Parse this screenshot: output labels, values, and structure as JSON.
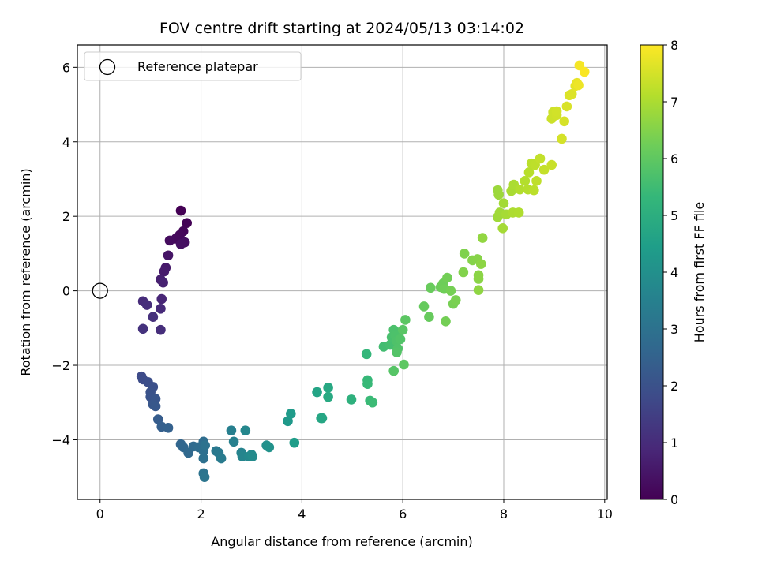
{
  "chart_data": {
    "type": "scatter",
    "title": "FOV centre drift starting at 2024/05/13 03:14:02",
    "xlabel": "Angular distance from reference (arcmin)",
    "ylabel": "Rotation from reference (arcmin)",
    "xlim": [
      -0.45,
      10.05
    ],
    "ylim": [
      -5.6,
      6.6
    ],
    "xticks": [
      0,
      2,
      4,
      6,
      8,
      10
    ],
    "yticks": [
      -4,
      -2,
      0,
      2,
      4,
      6
    ],
    "xtick_labels": [
      "0",
      "2",
      "4",
      "6",
      "8",
      "10"
    ],
    "ytick_labels": [
      "−4",
      "−2",
      "0",
      "2",
      "4",
      "6"
    ],
    "grid": true,
    "legend": {
      "placement": "top-left",
      "entries": [
        "Reference platepar"
      ]
    },
    "reference_point": {
      "x": 0,
      "y": 0
    },
    "colorbar": {
      "label": "Hours from first FF file",
      "range": [
        0,
        8
      ],
      "ticks": [
        0,
        1,
        2,
        3,
        4,
        5,
        6,
        7,
        8
      ],
      "tick_labels": [
        "0",
        "1",
        "2",
        "3",
        "4",
        "5",
        "6",
        "7",
        "8"
      ],
      "colormap": "viridis"
    },
    "points": [
      {
        "x": 1.6,
        "y": 2.15,
        "h": 0.0
      },
      {
        "x": 1.72,
        "y": 1.82,
        "h": 0.05
      },
      {
        "x": 1.65,
        "y": 1.6,
        "h": 0.1
      },
      {
        "x": 1.58,
        "y": 1.5,
        "h": 0.15
      },
      {
        "x": 1.5,
        "y": 1.4,
        "h": 0.2
      },
      {
        "x": 1.38,
        "y": 1.35,
        "h": 0.25
      },
      {
        "x": 1.68,
        "y": 1.3,
        "h": 0.3
      },
      {
        "x": 1.6,
        "y": 1.25,
        "h": 0.35
      },
      {
        "x": 1.35,
        "y": 0.95,
        "h": 0.45
      },
      {
        "x": 1.3,
        "y": 0.62,
        "h": 0.55
      },
      {
        "x": 1.27,
        "y": 0.52,
        "h": 0.6
      },
      {
        "x": 1.2,
        "y": 0.3,
        "h": 0.7
      },
      {
        "x": 1.25,
        "y": 0.22,
        "h": 0.75
      },
      {
        "x": 1.22,
        "y": -0.22,
        "h": 0.85
      },
      {
        "x": 1.2,
        "y": -0.48,
        "h": 0.95
      },
      {
        "x": 1.2,
        "y": -1.05,
        "h": 1.05
      },
      {
        "x": 0.85,
        "y": -0.28,
        "h": 1.0
      },
      {
        "x": 0.93,
        "y": -0.38,
        "h": 1.05
      },
      {
        "x": 1.05,
        "y": -0.7,
        "h": 1.1
      },
      {
        "x": 0.85,
        "y": -1.02,
        "h": 1.15
      },
      {
        "x": 0.82,
        "y": -2.3,
        "h": 1.8
      },
      {
        "x": 0.85,
        "y": -2.38,
        "h": 1.85
      },
      {
        "x": 0.95,
        "y": -2.45,
        "h": 1.9
      },
      {
        "x": 1.05,
        "y": -2.58,
        "h": 1.95
      },
      {
        "x": 1.0,
        "y": -2.72,
        "h": 2.0
      },
      {
        "x": 1.0,
        "y": -2.85,
        "h": 2.05
      },
      {
        "x": 1.1,
        "y": -2.9,
        "h": 2.1
      },
      {
        "x": 1.05,
        "y": -3.05,
        "h": 2.15
      },
      {
        "x": 1.1,
        "y": -3.1,
        "h": 2.2
      },
      {
        "x": 1.15,
        "y": -3.45,
        "h": 2.3
      },
      {
        "x": 1.22,
        "y": -3.65,
        "h": 2.4
      },
      {
        "x": 1.35,
        "y": -3.68,
        "h": 2.45
      },
      {
        "x": 1.6,
        "y": -4.12,
        "h": 2.6
      },
      {
        "x": 1.65,
        "y": -4.2,
        "h": 2.65
      },
      {
        "x": 1.75,
        "y": -4.35,
        "h": 2.7
      },
      {
        "x": 1.85,
        "y": -4.18,
        "h": 2.75
      },
      {
        "x": 1.95,
        "y": -4.2,
        "h": 2.8
      },
      {
        "x": 2.05,
        "y": -4.05,
        "h": 2.85
      },
      {
        "x": 2.05,
        "y": -4.3,
        "h": 2.9
      },
      {
        "x": 2.05,
        "y": -4.5,
        "h": 2.95
      },
      {
        "x": 2.08,
        "y": -4.15,
        "h": 3.0
      },
      {
        "x": 2.05,
        "y": -4.9,
        "h": 3.05
      },
      {
        "x": 2.07,
        "y": -5.0,
        "h": 3.1
      },
      {
        "x": 2.3,
        "y": -4.3,
        "h": 3.2
      },
      {
        "x": 2.35,
        "y": -4.35,
        "h": 3.25
      },
      {
        "x": 2.4,
        "y": -4.5,
        "h": 3.3
      },
      {
        "x": 2.6,
        "y": -3.75,
        "h": 3.45
      },
      {
        "x": 2.65,
        "y": -4.05,
        "h": 3.5
      },
      {
        "x": 2.8,
        "y": -4.35,
        "h": 3.6
      },
      {
        "x": 2.82,
        "y": -4.45,
        "h": 3.65
      },
      {
        "x": 2.88,
        "y": -3.75,
        "h": 3.7
      },
      {
        "x": 2.95,
        "y": -4.45,
        "h": 3.75
      },
      {
        "x": 3.0,
        "y": -4.4,
        "h": 3.8
      },
      {
        "x": 3.02,
        "y": -4.45,
        "h": 3.85
      },
      {
        "x": 3.3,
        "y": -4.15,
        "h": 4.0
      },
      {
        "x": 3.35,
        "y": -4.2,
        "h": 4.05
      },
      {
        "x": 3.72,
        "y": -3.5,
        "h": 4.3
      },
      {
        "x": 3.78,
        "y": -3.3,
        "h": 4.35
      },
      {
        "x": 3.85,
        "y": -4.08,
        "h": 4.4
      },
      {
        "x": 4.3,
        "y": -2.72,
        "h": 4.65
      },
      {
        "x": 4.4,
        "y": -3.42,
        "h": 4.7
      },
      {
        "x": 4.38,
        "y": -3.42,
        "h": 4.72
      },
      {
        "x": 4.52,
        "y": -2.6,
        "h": 4.8
      },
      {
        "x": 4.52,
        "y": -2.85,
        "h": 4.85
      },
      {
        "x": 4.98,
        "y": -2.92,
        "h": 5.1
      },
      {
        "x": 5.28,
        "y": -1.7,
        "h": 5.3
      },
      {
        "x": 5.3,
        "y": -2.4,
        "h": 5.35
      },
      {
        "x": 5.3,
        "y": -2.5,
        "h": 5.38
      },
      {
        "x": 5.35,
        "y": -2.95,
        "h": 5.4
      },
      {
        "x": 5.4,
        "y": -3.0,
        "h": 5.45
      },
      {
        "x": 5.62,
        "y": -1.5,
        "h": 5.55
      },
      {
        "x": 5.75,
        "y": -1.45,
        "h": 5.6
      },
      {
        "x": 5.78,
        "y": -1.25,
        "h": 5.65
      },
      {
        "x": 5.82,
        "y": -1.05,
        "h": 5.7
      },
      {
        "x": 5.85,
        "y": -1.2,
        "h": 5.72
      },
      {
        "x": 5.88,
        "y": -1.35,
        "h": 5.75
      },
      {
        "x": 5.9,
        "y": -1.55,
        "h": 5.78
      },
      {
        "x": 5.95,
        "y": -1.3,
        "h": 5.8
      },
      {
        "x": 5.88,
        "y": -1.65,
        "h": 5.82
      },
      {
        "x": 5.82,
        "y": -2.15,
        "h": 5.85
      },
      {
        "x": 6.0,
        "y": -1.05,
        "h": 5.9
      },
      {
        "x": 6.05,
        "y": -0.78,
        "h": 5.95
      },
      {
        "x": 6.02,
        "y": -1.98,
        "h": 5.97
      },
      {
        "x": 6.42,
        "y": -0.42,
        "h": 6.1
      },
      {
        "x": 6.52,
        "y": -0.7,
        "h": 6.12
      },
      {
        "x": 6.55,
        "y": 0.08,
        "h": 6.15
      },
      {
        "x": 6.75,
        "y": 0.1,
        "h": 6.2
      },
      {
        "x": 6.8,
        "y": 0.2,
        "h": 6.22
      },
      {
        "x": 6.82,
        "y": 0.05,
        "h": 6.25
      },
      {
        "x": 6.88,
        "y": 0.35,
        "h": 6.28
      },
      {
        "x": 6.85,
        "y": -0.82,
        "h": 6.3
      },
      {
        "x": 6.95,
        "y": 0.0,
        "h": 6.32
      },
      {
        "x": 7.0,
        "y": -0.35,
        "h": 6.35
      },
      {
        "x": 7.05,
        "y": -0.25,
        "h": 6.38
      },
      {
        "x": 7.22,
        "y": 1.0,
        "h": 6.45
      },
      {
        "x": 7.2,
        "y": 0.5,
        "h": 6.48
      },
      {
        "x": 7.38,
        "y": 0.82,
        "h": 6.52
      },
      {
        "x": 7.48,
        "y": 0.85,
        "h": 6.55
      },
      {
        "x": 7.5,
        "y": 0.32,
        "h": 6.58
      },
      {
        "x": 7.5,
        "y": 0.42,
        "h": 6.6
      },
      {
        "x": 7.55,
        "y": 0.72,
        "h": 6.62
      },
      {
        "x": 7.5,
        "y": 0.02,
        "h": 6.65
      },
      {
        "x": 7.58,
        "y": 1.42,
        "h": 6.68
      },
      {
        "x": 7.88,
        "y": 2.7,
        "h": 6.8
      },
      {
        "x": 7.9,
        "y": 2.58,
        "h": 6.82
      },
      {
        "x": 7.88,
        "y": 1.98,
        "h": 6.85
      },
      {
        "x": 7.92,
        "y": 2.1,
        "h": 6.87
      },
      {
        "x": 8.0,
        "y": 2.35,
        "h": 6.9
      },
      {
        "x": 7.98,
        "y": 1.68,
        "h": 6.92
      },
      {
        "x": 8.05,
        "y": 2.05,
        "h": 6.94
      },
      {
        "x": 8.15,
        "y": 2.68,
        "h": 6.97
      },
      {
        "x": 8.2,
        "y": 2.85,
        "h": 7.0
      },
      {
        "x": 8.18,
        "y": 2.1,
        "h": 7.02
      },
      {
        "x": 8.3,
        "y": 2.1,
        "h": 7.05
      },
      {
        "x": 8.32,
        "y": 2.72,
        "h": 7.08
      },
      {
        "x": 8.42,
        "y": 2.95,
        "h": 7.1
      },
      {
        "x": 8.48,
        "y": 2.72,
        "h": 7.12
      },
      {
        "x": 8.5,
        "y": 3.18,
        "h": 7.15
      },
      {
        "x": 8.55,
        "y": 3.42,
        "h": 7.18
      },
      {
        "x": 8.6,
        "y": 2.7,
        "h": 7.2
      },
      {
        "x": 8.62,
        "y": 3.38,
        "h": 7.22
      },
      {
        "x": 8.65,
        "y": 2.95,
        "h": 7.25
      },
      {
        "x": 8.72,
        "y": 3.55,
        "h": 7.28
      },
      {
        "x": 8.8,
        "y": 3.25,
        "h": 7.3
      },
      {
        "x": 8.95,
        "y": 3.38,
        "h": 7.35
      },
      {
        "x": 8.95,
        "y": 4.62,
        "h": 7.4
      },
      {
        "x": 8.98,
        "y": 4.8,
        "h": 7.42
      },
      {
        "x": 9.05,
        "y": 4.72,
        "h": 7.45
      },
      {
        "x": 9.05,
        "y": 4.82,
        "h": 7.47
      },
      {
        "x": 9.15,
        "y": 4.08,
        "h": 7.5
      },
      {
        "x": 9.2,
        "y": 4.55,
        "h": 7.52
      },
      {
        "x": 9.25,
        "y": 4.95,
        "h": 7.55
      },
      {
        "x": 9.3,
        "y": 5.25,
        "h": 7.58
      },
      {
        "x": 9.35,
        "y": 5.28,
        "h": 7.6
      },
      {
        "x": 9.42,
        "y": 5.5,
        "h": 7.7
      },
      {
        "x": 9.45,
        "y": 5.58,
        "h": 7.75
      },
      {
        "x": 9.48,
        "y": 5.52,
        "h": 7.8
      },
      {
        "x": 9.5,
        "y": 6.05,
        "h": 7.9
      },
      {
        "x": 9.6,
        "y": 5.88,
        "h": 7.95
      }
    ]
  }
}
